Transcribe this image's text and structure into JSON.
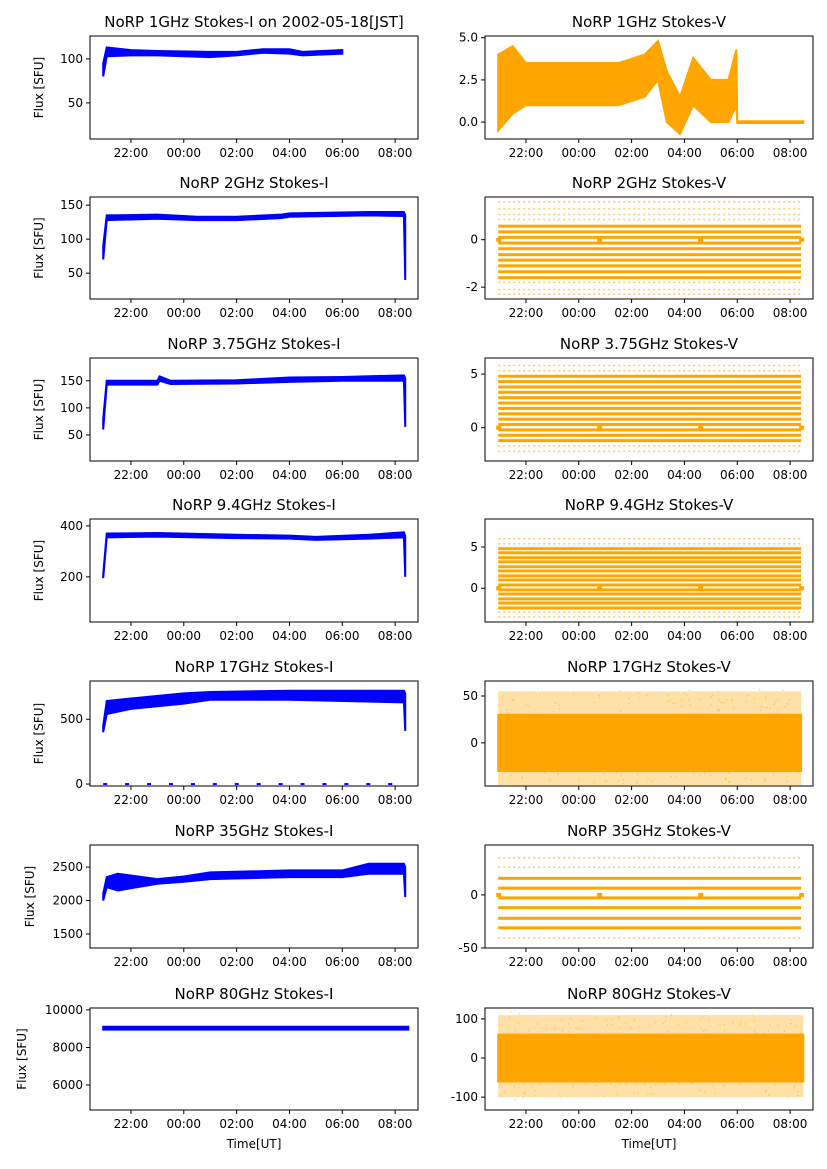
{
  "figure": {
    "xlabel": "Time[UT]",
    "ylabel": "Flux [SFU]",
    "xticks": [
      "22:00",
      "00:00",
      "02:00",
      "04:00",
      "06:00",
      "08:00"
    ],
    "xlim": [
      "20:27",
      "08:52"
    ],
    "colors": {
      "stokes_i": "#0000ff",
      "stokes_v": "#ffa500"
    }
  },
  "chart_data": [
    {
      "type": "scatter",
      "title": "NoRP 1GHz Stokes-I on 2002-05-18[JST]",
      "stokes": "I",
      "ylim": [
        9,
        126
      ],
      "yticks": [
        50,
        100
      ],
      "envelope": [
        [
          "20:57",
          80,
          95
        ],
        [
          "21:05",
          103,
          113
        ],
        [
          "22:00",
          104,
          110
        ],
        [
          "23:00",
          104,
          109
        ],
        [
          "01:00",
          102,
          108
        ],
        [
          "02:00",
          104,
          108
        ],
        [
          "03:00",
          107,
          111
        ],
        [
          "04:00",
          106,
          111
        ],
        [
          "04:30",
          104,
          108
        ],
        [
          "06:00",
          106,
          110
        ]
      ]
    },
    {
      "type": "scatter",
      "title": "NoRP 1GHz Stokes-V",
      "stokes": "V",
      "ylim": [
        -1.0,
        5.1
      ],
      "yticks": [
        0.0,
        2.5,
        5.0
      ],
      "ytick_labels": [
        "0.0",
        "2.5",
        "5.0"
      ],
      "envelope": [
        [
          "20:57",
          -0.5,
          4.0
        ],
        [
          "21:30",
          0.5,
          4.5
        ],
        [
          "22:00",
          1.0,
          3.5
        ],
        [
          "01:30",
          1.0,
          3.5
        ],
        [
          "02:30",
          1.5,
          4.0
        ],
        [
          "03:00",
          2.5,
          4.8
        ],
        [
          "03:20",
          0.0,
          3.0
        ],
        [
          "03:50",
          -0.7,
          1.5
        ],
        [
          "04:20",
          1.0,
          3.8
        ],
        [
          "05:00",
          0.0,
          2.5
        ],
        [
          "05:40",
          0.0,
          2.5
        ],
        [
          "05:58",
          1.0,
          4.3
        ],
        [
          "06:00",
          -0.05,
          0.05
        ],
        [
          "08:30",
          -0.05,
          0.05
        ]
      ]
    },
    {
      "type": "scatter",
      "title": "NoRP 2GHz Stokes-I",
      "stokes": "I",
      "ylim": [
        12,
        162
      ],
      "yticks": [
        50,
        100,
        150
      ],
      "envelope": [
        [
          "20:57",
          70,
          90
        ],
        [
          "21:05",
          128,
          135
        ],
        [
          "23:00",
          130,
          136
        ],
        [
          "00:30",
          128,
          133
        ],
        [
          "02:00",
          128,
          133
        ],
        [
          "03:40",
          131,
          136
        ],
        [
          "04:00",
          133,
          138
        ],
        [
          "07:00",
          135,
          140
        ],
        [
          "08:20",
          134,
          140
        ],
        [
          "08:23",
          40,
          135
        ]
      ]
    },
    {
      "type": "scatter",
      "title": "NoRP 2GHz Stokes-V",
      "stokes": "V",
      "ylim": [
        -2.5,
        1.8
      ],
      "yticks": [
        -2,
        0
      ],
      "span": [
        "20:57",
        "08:25"
      ],
      "levels": [
        1.6,
        1.3,
        1.06,
        0.85,
        0.57,
        0.33,
        0.1,
        -0.14,
        -0.38,
        -0.63,
        -0.86,
        -1.1,
        -1.35,
        -1.6,
        -1.8,
        -2.1,
        -2.3
      ],
      "dense_range": [
        -1.6,
        0.6
      ]
    },
    {
      "type": "scatter",
      "title": "NoRP 3.75GHz Stokes-I",
      "stokes": "I",
      "ylim": [
        2,
        192
      ],
      "yticks": [
        50,
        100,
        150
      ],
      "envelope": [
        [
          "20:57",
          60,
          80
        ],
        [
          "21:05",
          143,
          150
        ],
        [
          "23:00",
          143,
          150
        ],
        [
          "23:05",
          150,
          158
        ],
        [
          "23:30",
          144,
          150
        ],
        [
          "02:00",
          145,
          151
        ],
        [
          "04:00",
          148,
          156
        ],
        [
          "06:00",
          150,
          157
        ],
        [
          "08:20",
          150,
          160
        ],
        [
          "08:23",
          65,
          155
        ]
      ]
    },
    {
      "type": "scatter",
      "title": "NoRP 3.75GHz Stokes-V",
      "stokes": "V",
      "ylim": [
        -3.1,
        6.5
      ],
      "yticks": [
        0,
        5
      ],
      "span": [
        "20:57",
        "08:25"
      ],
      "levels": [
        5.8,
        5.3,
        4.8,
        4.3,
        3.8,
        3.3,
        2.8,
        2.3,
        1.8,
        1.3,
        0.8,
        0.3,
        -0.2,
        -0.7,
        -1.2,
        -1.7,
        -2.2
      ],
      "dense_range": [
        -1.2,
        4.8
      ]
    },
    {
      "type": "scatter",
      "title": "NoRP 9.4GHz Stokes-I",
      "stokes": "I",
      "ylim": [
        23,
        427
      ],
      "yticks": [
        200,
        400
      ],
      "envelope": [
        [
          "20:57",
          195,
          210
        ],
        [
          "21:05",
          355,
          370
        ],
        [
          "23:00",
          358,
          372
        ],
        [
          "02:00",
          352,
          365
        ],
        [
          "04:00",
          350,
          362
        ],
        [
          "05:00",
          345,
          357
        ],
        [
          "07:00",
          350,
          365
        ],
        [
          "08:20",
          355,
          375
        ],
        [
          "08:23",
          200,
          360
        ]
      ]
    },
    {
      "type": "scatter",
      "title": "NoRP 9.4GHz Stokes-V",
      "stokes": "V",
      "ylim": [
        -4.1,
        8.4
      ],
      "yticks": [
        0,
        5
      ],
      "span": [
        "20:57",
        "08:25"
      ],
      "levels": [
        6.0,
        5.4,
        4.8,
        4.3,
        3.7,
        3.2,
        2.6,
        2.1,
        1.5,
        1.0,
        0.4,
        -0.2,
        -0.7,
        -1.3,
        -1.8,
        -2.4,
        -2.9,
        -3.5
      ],
      "dense_range": [
        -2.4,
        4.8
      ]
    },
    {
      "type": "scatter",
      "title": "NoRP 17GHz Stokes-I",
      "stokes": "I",
      "ylim": [
        -15,
        795
      ],
      "yticks": [
        0,
        500
      ],
      "envelope": [
        [
          "20:57",
          400,
          450
        ],
        [
          "21:05",
          540,
          640
        ],
        [
          "22:00",
          580,
          660
        ],
        [
          "00:00",
          620,
          700
        ],
        [
          "01:00",
          650,
          710
        ],
        [
          "04:00",
          650,
          720
        ],
        [
          "08:20",
          630,
          720
        ],
        [
          "08:23",
          410,
          700
        ]
      ],
      "baseline": 0
    },
    {
      "type": "scatter",
      "title": "NoRP 17GHz Stokes-V",
      "stokes": "V",
      "ylim": [
        -46,
        66
      ],
      "yticks": [
        0,
        50
      ],
      "envelope": [
        [
          "20:57",
          -30,
          30
        ],
        [
          "08:25",
          -30,
          30
        ]
      ],
      "outer": [
        -45,
        55
      ]
    },
    {
      "type": "scatter",
      "title": "NoRP 35GHz Stokes-I",
      "stokes": "I",
      "ylim": [
        1290,
        2830
      ],
      "yticks": [
        1500,
        2000,
        2500
      ],
      "envelope": [
        [
          "20:57",
          2000,
          2100
        ],
        [
          "21:05",
          2200,
          2350
        ],
        [
          "21:30",
          2150,
          2400
        ],
        [
          "23:00",
          2250,
          2320
        ],
        [
          "00:00",
          2280,
          2360
        ],
        [
          "01:00",
          2320,
          2420
        ],
        [
          "04:00",
          2350,
          2450
        ],
        [
          "06:00",
          2350,
          2450
        ],
        [
          "07:00",
          2400,
          2550
        ],
        [
          "08:20",
          2400,
          2550
        ],
        [
          "08:23",
          2050,
          2500
        ]
      ]
    },
    {
      "type": "scatter",
      "title": "NoRP 35GHz Stokes-V",
      "stokes": "V",
      "ylim": [
        -50,
        47
      ],
      "yticks": [
        -50,
        0
      ],
      "span": [
        "20:57",
        "08:25"
      ],
      "levels": [
        35,
        26,
        15.6,
        6.4,
        -2.8,
        -12,
        -22,
        -31,
        -40.5
      ],
      "dense_range": [
        -31,
        15.6
      ]
    },
    {
      "type": "scatter",
      "title": "NoRP 80GHz Stokes-I",
      "stokes": "I",
      "ylim": [
        4670,
        10100
      ],
      "yticks": [
        6000,
        8000,
        10000
      ],
      "envelope": [
        [
          "20:57",
          8950,
          9100
        ],
        [
          "08:30",
          8950,
          9100
        ]
      ]
    },
    {
      "type": "scatter",
      "title": "NoRP 80GHz Stokes-V",
      "stokes": "V",
      "ylim": [
        -133,
        128
      ],
      "yticks": [
        -100,
        0,
        100
      ],
      "envelope": [
        [
          "20:57",
          -60,
          60
        ],
        [
          "08:30",
          -60,
          60
        ]
      ],
      "outer": [
        -100,
        110
      ]
    }
  ]
}
